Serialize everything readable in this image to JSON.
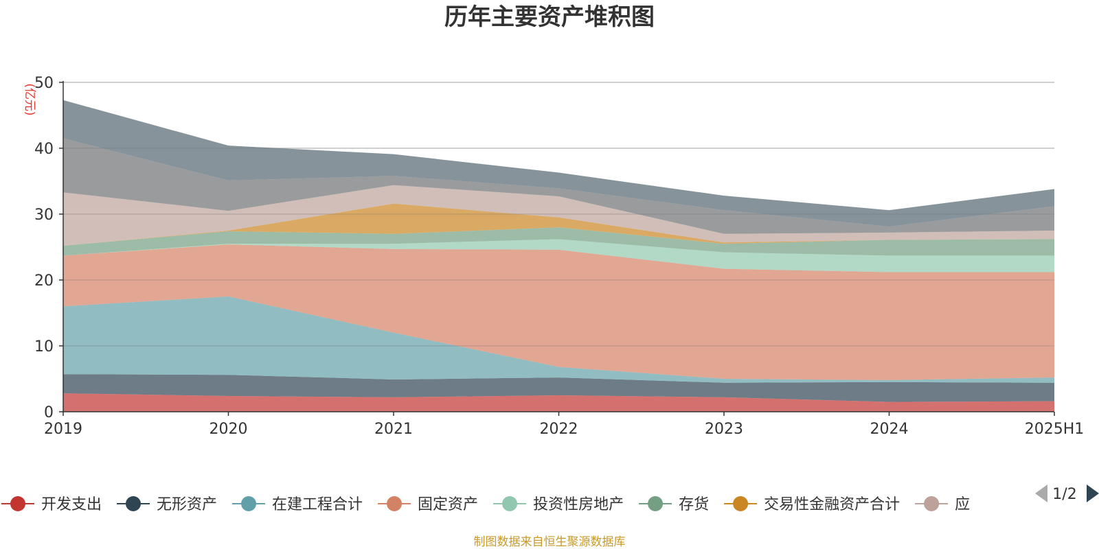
{
  "chart_data": {
    "type": "area",
    "stacked": true,
    "title": "历年主要资产堆积图",
    "unit": "(亿元)",
    "categories": [
      "2019",
      "2020",
      "2021",
      "2022",
      "2023",
      "2024",
      "2025H1"
    ],
    "ylim": [
      0,
      50
    ],
    "yticks": [
      "0",
      "10",
      "20",
      "30",
      "40",
      "50"
    ],
    "grid": true,
    "legend_position": "bottom",
    "legend_page": "1/2",
    "series": [
      {
        "name": "开发支出",
        "color": "#c23531",
        "values": [
          2.8,
          2.4,
          2.2,
          2.5,
          2.2,
          1.5,
          1.6
        ]
      },
      {
        "name": "无形资产",
        "color": "#2f4554",
        "values": [
          2.9,
          3.2,
          2.7,
          2.7,
          2.2,
          3.0,
          2.8
        ]
      },
      {
        "name": "在建工程合计",
        "color": "#61a0a8",
        "values": [
          10.3,
          11.9,
          7.1,
          1.6,
          0.6,
          0.3,
          0.8
        ]
      },
      {
        "name": "固定资产",
        "color": "#d48265",
        "values": [
          7.7,
          7.9,
          12.7,
          17.8,
          16.7,
          16.4,
          16.0
        ]
      },
      {
        "name": "投资性房地产",
        "color": "#91c7ae",
        "values": [
          0,
          0.1,
          0.8,
          1.6,
          2.5,
          2.5,
          2.5
        ]
      },
      {
        "name": "存货",
        "color": "#749f83",
        "values": [
          1.5,
          1.9,
          1.5,
          1.8,
          1.3,
          2.4,
          2.5
        ]
      },
      {
        "name": "交易性金融资产合计",
        "color": "#ca8622",
        "values": [
          0,
          0.1,
          4.6,
          1.5,
          0.2,
          0,
          0
        ]
      },
      {
        "name": "应",
        "color": "#bda29a",
        "values": [
          8.1,
          3.0,
          2.8,
          3.2,
          1.3,
          1.1,
          1.3
        ]
      },
      {
        "name": "",
        "color": "#6e7074",
        "values": [
          8.2,
          4.6,
          1.4,
          1.2,
          3.6,
          0.9,
          3.7
        ]
      },
      {
        "name": "",
        "color": "#546570",
        "values": [
          5.8,
          5.3,
          3.3,
          2.4,
          2.2,
          2.5,
          2.6
        ]
      }
    ]
  },
  "footer": "制图数据来自恒生聚源数据库"
}
